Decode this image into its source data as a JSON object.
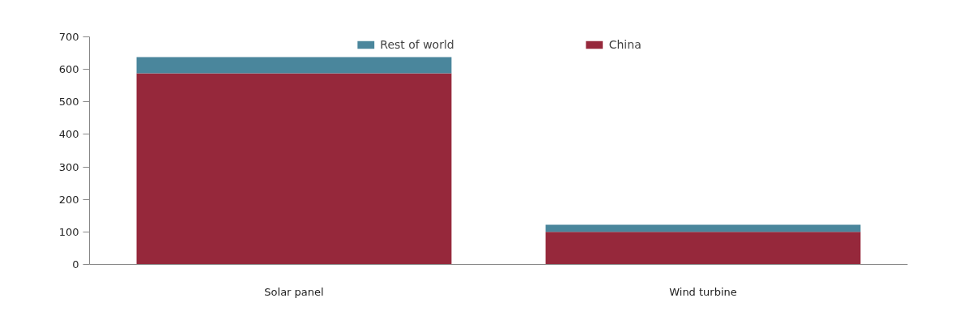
{
  "chart_data": {
    "type": "bar",
    "stacked": true,
    "categories": [
      "Solar panel",
      "Wind turbine"
    ],
    "series": [
      {
        "name": "China",
        "color": "#96283b",
        "values": [
          588,
          100
        ]
      },
      {
        "name": "Rest of world",
        "color": "#4a869c",
        "values": [
          50,
          22
        ]
      }
    ],
    "ylim": [
      0,
      700
    ],
    "yticks": [
      0,
      100,
      200,
      300,
      400,
      500,
      600,
      700
    ],
    "grid": false,
    "legend": "top"
  }
}
